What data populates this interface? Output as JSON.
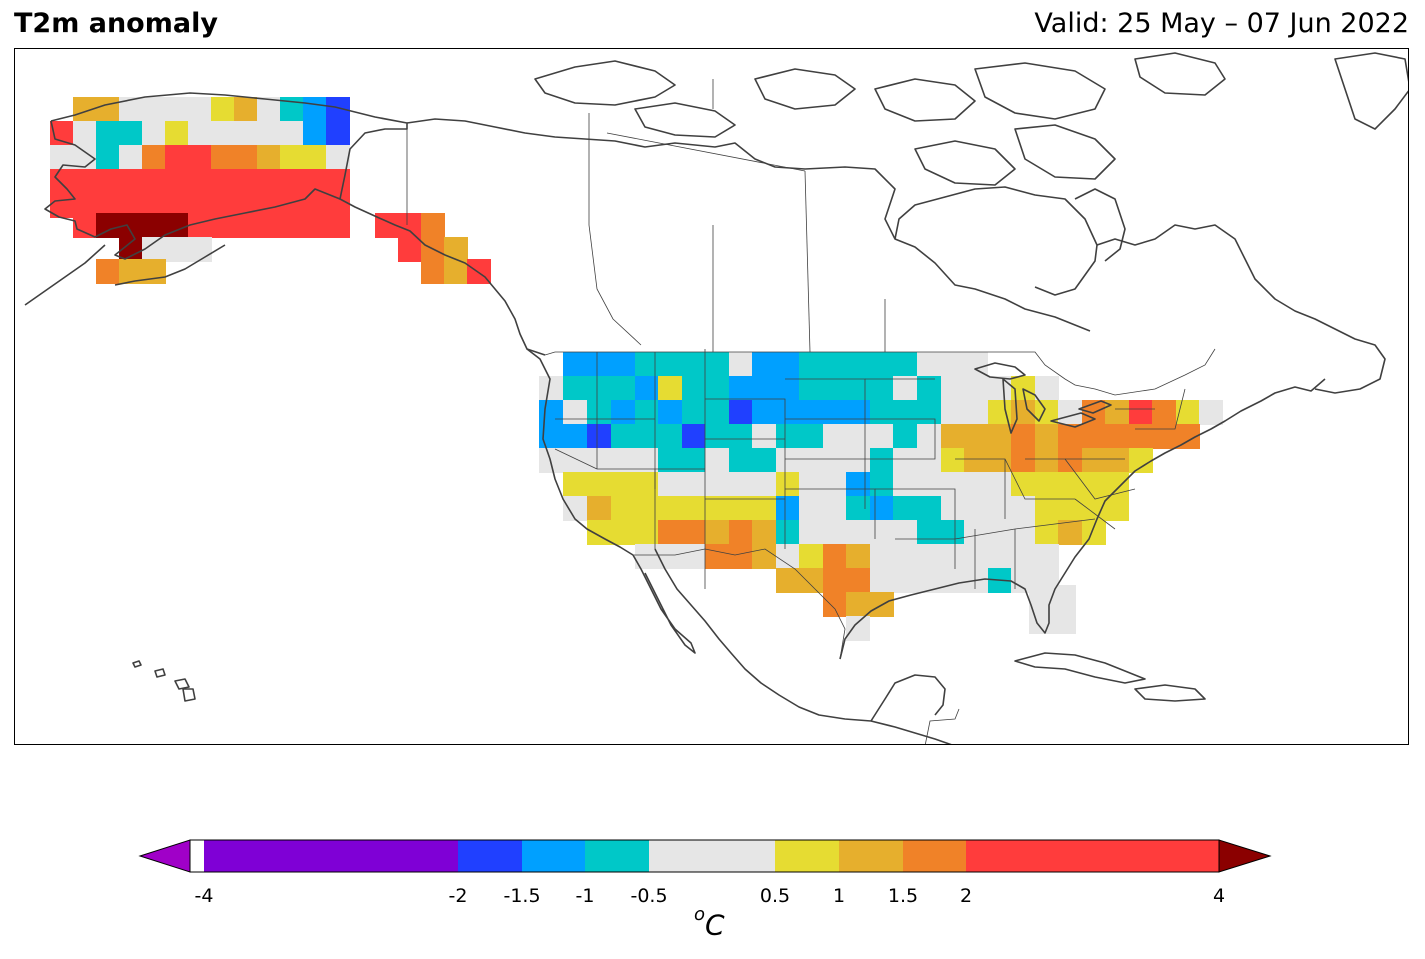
{
  "title": "T2m anomaly",
  "valid": "Valid: 25 May – 07 Jun 2022",
  "units": {
    "base": "C",
    "sup": "o"
  },
  "colorbar": {
    "ticks": [
      "-4",
      "-2",
      "-1.5",
      "-1",
      "-0.5",
      "0.5",
      "1",
      "1.5",
      "2",
      "4"
    ],
    "tick_values": [
      -4,
      -2,
      -1.5,
      -1,
      -0.5,
      0.5,
      1,
      1.5,
      2,
      4
    ],
    "bins": [
      {
        "range": [
          -4,
          -2
        ],
        "color": "#7f00d6"
      },
      {
        "range": [
          -2,
          -1.5
        ],
        "color": "#2040ff"
      },
      {
        "range": [
          -1.5,
          -1
        ],
        "color": "#00a0ff"
      },
      {
        "range": [
          -1,
          -0.5
        ],
        "color": "#00c8c8"
      },
      {
        "range": [
          -0.5,
          0.5
        ],
        "color": "#e6e6e6"
      },
      {
        "range": [
          0.5,
          1
        ],
        "color": "#e6dc32"
      },
      {
        "range": [
          1,
          1.5
        ],
        "color": "#e6af2d"
      },
      {
        "range": [
          1.5,
          2
        ],
        "color": "#f08228"
      },
      {
        "range": [
          2,
          4
        ],
        "color": "#ff3c3c"
      }
    ],
    "under_color": "#a000c8",
    "over_color": "#8b0000"
  },
  "map": {
    "region": "North America",
    "land_outline_color": "#404040",
    "anomaly_summary": [
      {
        "area": "Alaska (interior/west)",
        "anomaly": "2 to 4"
      },
      {
        "area": "southwest Alaska",
        "anomaly": "above 4"
      },
      {
        "area": "northern Plains / Montana / Dakotas",
        "anomaly": "-1 to -2"
      },
      {
        "area": "Southwest / Texas",
        "anomaly": "0.5 to 2"
      },
      {
        "area": "Northeast / Great Lakes",
        "anomaly": "1 to 4"
      },
      {
        "area": "Southeast",
        "anomaly": "-0.5 to 0.5"
      }
    ]
  }
}
